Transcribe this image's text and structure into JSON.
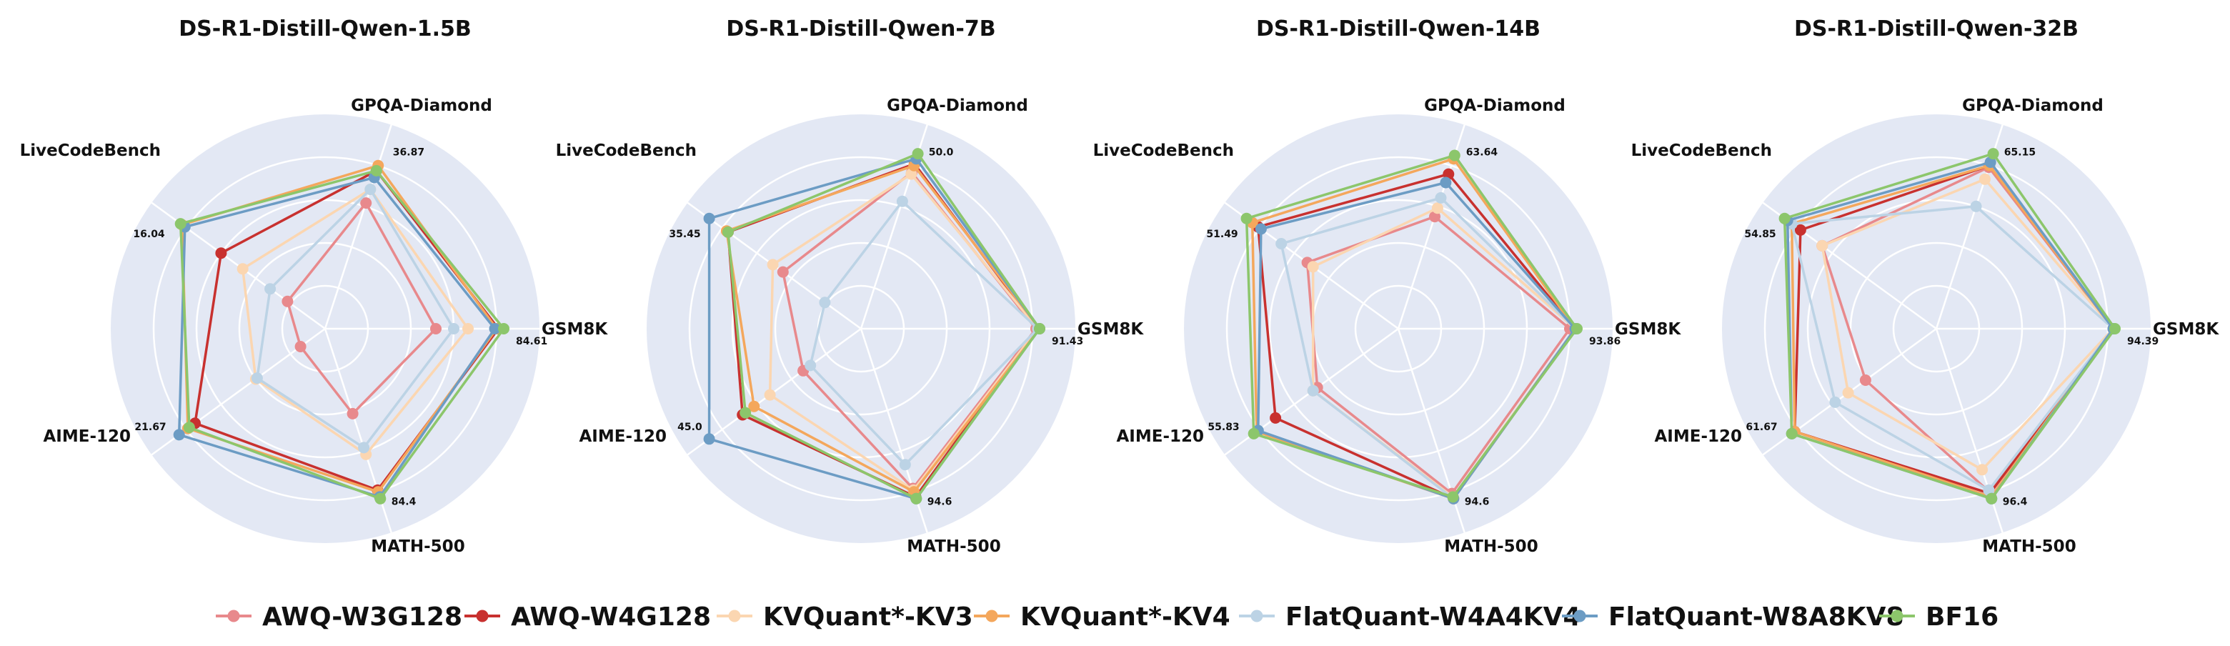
{
  "chart_data": [
    {
      "type": "radar",
      "title": "DS-R1-Distill-Qwen-1.5B",
      "axes": [
        "GPQA-Diamond",
        "GSM8K",
        "MATH-500",
        "AIME-120",
        "LiveCodeBench"
      ],
      "reference_labels": [
        "36.87",
        "84.61",
        "84.4",
        "21.67",
        "16.04"
      ],
      "series": [
        {
          "name": "AWQ-W3G128",
          "values": [
            0.74,
            0.62,
            0.5,
            0.17,
            0.26
          ]
        },
        {
          "name": "AWQ-W4G128",
          "values": [
            0.93,
            0.97,
            0.95,
            0.9,
            0.72
          ]
        },
        {
          "name": "KVQuant*-KV3",
          "values": [
            0.82,
            0.8,
            0.74,
            0.48,
            0.57
          ]
        },
        {
          "name": "KVQuant*-KV4",
          "values": [
            0.96,
            0.96,
            0.96,
            0.95,
            0.99
          ]
        },
        {
          "name": "FlatQuant-W4A4KV4",
          "values": [
            0.82,
            0.72,
            0.7,
            0.47,
            0.38
          ]
        },
        {
          "name": "FlatQuant-W8A8KV8",
          "values": [
            0.89,
            0.95,
            0.99,
            1.01,
            0.97
          ]
        },
        {
          "name": "BF16",
          "values": [
            0.93,
            1.0,
            1.0,
            0.94,
            1.0
          ]
        }
      ]
    },
    {
      "type": "radar",
      "title": "DS-R1-Distill-Qwen-7B",
      "axes": [
        "GPQA-Diamond",
        "GSM8K",
        "MATH-500",
        "AIME-120",
        "LiveCodeBench"
      ],
      "reference_labels": [
        "50.0",
        "91.43",
        "94.6",
        "45.0",
        "35.45"
      ],
      "series": [
        {
          "name": "AWQ-W3G128",
          "values": [
            0.92,
            0.98,
            0.94,
            0.4,
            0.54
          ]
        },
        {
          "name": "AWQ-W4G128",
          "values": [
            0.97,
            0.99,
            0.99,
            0.82,
            0.92
          ]
        },
        {
          "name": "KVQuant*-KV3",
          "values": [
            0.91,
            0.99,
            0.95,
            0.63,
            0.61
          ]
        },
        {
          "name": "KVQuant*-KV4",
          "values": [
            0.96,
            1.0,
            0.96,
            0.74,
            0.93
          ]
        },
        {
          "name": "FlatQuant-W4A4KV4",
          "values": [
            0.75,
            0.99,
            0.8,
            0.35,
            0.25
          ]
        },
        {
          "name": "FlatQuant-W8A8KV8",
          "values": [
            1.0,
            1.0,
            1.0,
            1.05,
            1.05
          ]
        },
        {
          "name": "BF16",
          "values": [
            1.03,
            1.0,
            1.0,
            0.8,
            0.92
          ]
        }
      ]
    },
    {
      "type": "radar",
      "title": "DS-R1-Distill-Qwen-14B",
      "axes": [
        "GPQA-Diamond",
        "GSM8K",
        "MATH-500",
        "AIME-120",
        "LiveCodeBench"
      ],
      "reference_labels": [
        "63.64",
        "93.86",
        "94.6",
        "55.83",
        "51.49"
      ],
      "series": [
        {
          "name": "AWQ-W3G128",
          "values": [
            0.66,
            0.96,
            0.97,
            0.56,
            0.63
          ]
        },
        {
          "name": "AWQ-W4G128",
          "values": [
            0.91,
            0.99,
            1.0,
            0.85,
            0.97
          ]
        },
        {
          "name": "KVQuant*-KV3",
          "values": [
            0.71,
            0.99,
            0.99,
            0.59,
            0.59
          ]
        },
        {
          "name": "KVQuant*-KV4",
          "values": [
            1.0,
            0.99,
            1.0,
            0.98,
            1.01
          ]
        },
        {
          "name": "FlatQuant-W4A4KV4",
          "values": [
            0.77,
            0.99,
            1.0,
            0.59,
            0.81
          ]
        },
        {
          "name": "FlatQuant-W8A8KV8",
          "values": [
            0.86,
            0.99,
            1.0,
            0.97,
            0.95
          ]
        },
        {
          "name": "BF16",
          "values": [
            1.02,
            1.0,
            0.99,
            1.0,
            1.05
          ]
        }
      ]
    },
    {
      "type": "radar",
      "title": "DS-R1-Distill-Qwen-32B",
      "axes": [
        "GPQA-Diamond",
        "GSM8K",
        "MATH-500",
        "AIME-120",
        "LiveCodeBench"
      ],
      "reference_labels": [
        "65.15",
        "94.39",
        "96.4",
        "61.67",
        "54.85"
      ],
      "series": [
        {
          "name": "AWQ-W3G128",
          "values": [
            0.95,
            0.99,
            0.96,
            0.49,
            0.79
          ]
        },
        {
          "name": "AWQ-W4G128",
          "values": [
            0.96,
            0.99,
            0.97,
            0.98,
            0.94
          ]
        },
        {
          "name": "KVQuant*-KV3",
          "values": [
            0.88,
            0.99,
            0.83,
            0.61,
            0.79
          ]
        },
        {
          "name": "KVQuant*-KV4",
          "values": [
            0.96,
            0.99,
            0.99,
            0.98,
            1.0
          ]
        },
        {
          "name": "FlatQuant-W4A4KV4",
          "values": [
            0.72,
            0.99,
            0.95,
            0.7,
            1.0
          ]
        },
        {
          "name": "FlatQuant-W8A8KV8",
          "values": [
            0.98,
            0.99,
            1.0,
            1.0,
            1.03
          ]
        },
        {
          "name": "BF16",
          "values": [
            1.03,
            1.0,
            1.0,
            1.0,
            1.05
          ]
        }
      ]
    }
  ],
  "legend": [
    {
      "name": "AWQ-W3G128",
      "color": "#e8898c"
    },
    {
      "name": "AWQ-W4G128",
      "color": "#c8312f"
    },
    {
      "name": "KVQuant*-KV3",
      "color": "#fbd6b1"
    },
    {
      "name": "KVQuant*-KV4",
      "color": "#f4a75c"
    },
    {
      "name": "FlatQuant-W4A4KV4",
      "color": "#bcd3e5"
    },
    {
      "name": "FlatQuant-W8A8KV8",
      "color": "#6c9cc4"
    },
    {
      "name": "BF16",
      "color": "#8cc66b"
    }
  ],
  "style": {
    "background": "#e3e8f4",
    "gridline": "#ffffff"
  }
}
